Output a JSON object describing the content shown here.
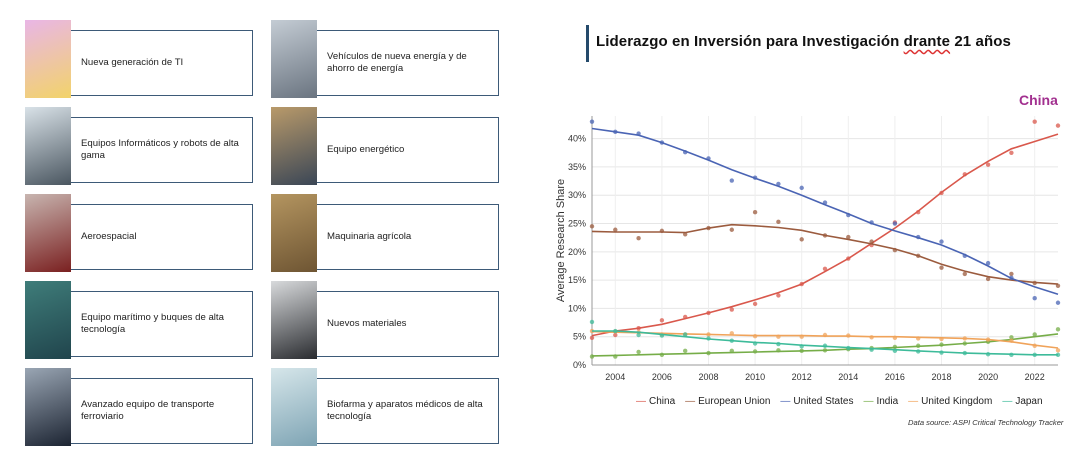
{
  "title": {
    "prefix": "Liderazgo en Inversión para Investigación ",
    "underlined": "drante",
    "suffix": " 21 años"
  },
  "highlight_label": "China",
  "cards": [
    {
      "label": "Nueva generación de TI",
      "thumb": "wifi-tiles-image",
      "colors": [
        "#e9b6e6",
        "#f2d36a"
      ]
    },
    {
      "label": "Vehículos de nueva energía y de ahorro de energía",
      "thumb": "ev-charger-image",
      "colors": [
        "#c4ccd4",
        "#6a7480"
      ]
    },
    {
      "label": "Equipos Informáticos y robots de alta gama",
      "thumb": "robot-lab-image",
      "colors": [
        "#d9e2e8",
        "#4a5660"
      ]
    },
    {
      "label": "Equipo energético",
      "thumb": "solar-panels-image",
      "colors": [
        "#b99a6a",
        "#3a4656"
      ]
    },
    {
      "label": "Aeroespacial",
      "thumb": "aerospace-image",
      "colors": [
        "#c8b5b0",
        "#7a2020"
      ]
    },
    {
      "label": "Maquinaria agrícola",
      "thumb": "harvester-image",
      "colors": [
        "#b49560",
        "#6e5533"
      ]
    },
    {
      "label": "Equipo marítimo y buques de alta tecnología",
      "thumb": "ship-image",
      "colors": [
        "#3f7d7a",
        "#20444c"
      ]
    },
    {
      "label": "Nuevos materiales",
      "thumb": "pipes-image",
      "colors": [
        "#d8dadc",
        "#2a2c30"
      ]
    },
    {
      "label": "Avanzado equipo de transporte ferroviario",
      "thumb": "rail-tunnel-image",
      "colors": [
        "#9aa6b4",
        "#1c2432"
      ]
    },
    {
      "label": "Biofarma y aparatos médicos de alta tecnología",
      "thumb": "lab-flask-image",
      "colors": [
        "#d6e6ea",
        "#7ea4b4"
      ]
    }
  ],
  "chart_data": {
    "type": "line",
    "ylabel": "Average Research Share",
    "xlabel": "",
    "x": [
      2003,
      2004,
      2005,
      2006,
      2007,
      2008,
      2009,
      2010,
      2011,
      2012,
      2013,
      2014,
      2015,
      2016,
      2017,
      2018,
      2019,
      2020,
      2021,
      2022,
      2023
    ],
    "xticks": [
      2004,
      2006,
      2008,
      2010,
      2012,
      2014,
      2016,
      2018,
      2020,
      2022
    ],
    "ylim": [
      0,
      44
    ],
    "yticks": [
      0,
      5,
      10,
      15,
      20,
      25,
      30,
      35,
      40
    ],
    "ytick_labels": [
      "0%",
      "5%",
      "10%",
      "15%",
      "20%",
      "25%",
      "30%",
      "35%",
      "40%"
    ],
    "grid": true,
    "legend_position": "bottom",
    "series": [
      {
        "name": "China",
        "color": "#d9584c",
        "values": [
          5.2,
          6.0,
          6.5,
          7.2,
          8.2,
          9.2,
          10.3,
          11.5,
          12.8,
          14.3,
          16.5,
          18.8,
          21.5,
          24.2,
          27.2,
          30.5,
          33.5,
          36.0,
          38.2,
          39.5,
          40.8
        ],
        "points": [
          4.8,
          5.3,
          6.5,
          7.9,
          8.5,
          9.2,
          9.8,
          10.8,
          12.3,
          14.3,
          17.0,
          18.8,
          21.2,
          25.2,
          27.0,
          30.4,
          33.7,
          35.4,
          37.5,
          43.0,
          42.3
        ]
      },
      {
        "name": "European Union",
        "color": "#9b5b3e",
        "values": [
          23.6,
          23.5,
          23.5,
          23.5,
          23.4,
          24.2,
          24.8,
          24.6,
          24.3,
          23.8,
          22.9,
          22.2,
          21.4,
          20.5,
          19.3,
          17.8,
          16.6,
          15.6,
          15.0,
          14.6,
          14.3
        ],
        "points": [
          24.5,
          23.9,
          22.4,
          23.7,
          23.1,
          24.2,
          23.9,
          27.0,
          25.3,
          22.2,
          22.9,
          22.6,
          21.8,
          20.3,
          19.3,
          17.2,
          16.1,
          15.2,
          16.1,
          14.5,
          14.0
        ]
      },
      {
        "name": "United States",
        "color": "#4a64b4",
        "values": [
          41.8,
          41.2,
          40.6,
          39.3,
          37.8,
          36.2,
          34.5,
          33.0,
          31.6,
          30.0,
          28.3,
          26.7,
          25.0,
          23.7,
          22.5,
          21.2,
          19.5,
          17.5,
          15.3,
          13.8,
          12.5
        ],
        "points": [
          43.0,
          41.2,
          40.9,
          39.3,
          37.6,
          36.5,
          32.6,
          33.1,
          32.0,
          31.3,
          28.7,
          26.5,
          25.2,
          25.0,
          22.6,
          21.8,
          19.3,
          18.0,
          15.4,
          11.8,
          11.0
        ]
      },
      {
        "name": "India",
        "color": "#76ad48",
        "values": [
          1.6,
          1.7,
          1.8,
          1.9,
          2.0,
          2.1,
          2.2,
          2.3,
          2.4,
          2.5,
          2.6,
          2.8,
          2.9,
          3.1,
          3.3,
          3.5,
          3.8,
          4.1,
          4.5,
          5.0,
          5.5
        ],
        "points": [
          1.5,
          1.5,
          2.3,
          1.8,
          2.5,
          2.1,
          2.5,
          2.4,
          2.6,
          2.5,
          2.6,
          2.8,
          3.0,
          3.2,
          3.4,
          3.6,
          3.8,
          4.1,
          4.9,
          5.4,
          6.3
        ]
      },
      {
        "name": "United Kingdom",
        "color": "#f0a35a",
        "values": [
          5.9,
          5.8,
          5.7,
          5.6,
          5.5,
          5.4,
          5.3,
          5.2,
          5.2,
          5.2,
          5.1,
          5.1,
          5.0,
          5.0,
          4.9,
          4.8,
          4.7,
          4.5,
          4.1,
          3.5,
          3.0
        ],
        "points": [
          6.0,
          5.9,
          5.8,
          5.4,
          5.4,
          5.4,
          5.6,
          5.1,
          5.0,
          5.0,
          5.3,
          5.2,
          4.9,
          4.8,
          4.7,
          4.6,
          4.7,
          4.5,
          4.3,
          3.4,
          2.6
        ]
      },
      {
        "name": "Japan",
        "color": "#3dbb9a",
        "values": [
          6.0,
          6.0,
          5.8,
          5.4,
          5.0,
          4.6,
          4.3,
          4.0,
          3.8,
          3.5,
          3.3,
          3.1,
          2.9,
          2.7,
          2.5,
          2.3,
          2.1,
          2.0,
          1.9,
          1.8,
          1.8
        ],
        "points": [
          7.6,
          6.0,
          5.3,
          5.2,
          5.4,
          4.7,
          4.3,
          3.8,
          3.7,
          3.3,
          3.4,
          3.0,
          2.7,
          2.5,
          2.4,
          2.2,
          2.1,
          1.9,
          1.8,
          1.8,
          1.8
        ]
      }
    ],
    "source": "Data source: ASPI Critical Technology Tracker"
  }
}
